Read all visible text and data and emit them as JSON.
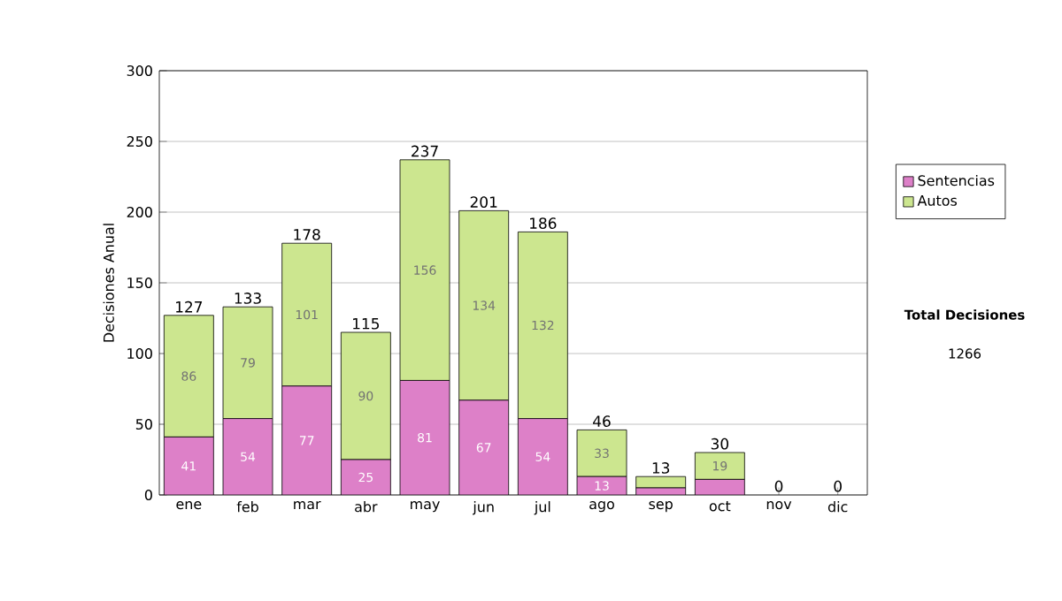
{
  "chart_data": {
    "type": "bar",
    "stacked": true,
    "ylabel": "Decisiones Anual",
    "categories": [
      "ene",
      "feb",
      "mar",
      "abr",
      "may",
      "jun",
      "jul",
      "ago",
      "sep",
      "oct",
      "nov",
      "dic"
    ],
    "series": [
      {
        "name": "Sentencias",
        "color": "#dd80c8",
        "values": [
          41,
          54,
          77,
          25,
          81,
          67,
          54,
          13,
          5,
          11,
          0,
          0
        ],
        "value_labels": [
          "41",
          "54",
          "77",
          "25",
          "81",
          "67",
          "54",
          "13",
          null,
          null,
          null,
          null
        ]
      },
      {
        "name": "Autos",
        "color": "#cce68f",
        "values": [
          86,
          79,
          101,
          90,
          156,
          134,
          132,
          33,
          8,
          19,
          0,
          0
        ],
        "value_labels": [
          "86",
          "79",
          "101",
          "90",
          "156",
          "134",
          "132",
          "33",
          null,
          "19",
          null,
          null
        ]
      }
    ],
    "totals": [
      "127",
      "133",
      "178",
      "115",
      "237",
      "201",
      "186",
      "46",
      "13",
      "30",
      "0",
      "0"
    ],
    "ylim": [
      0,
      300
    ],
    "yticks": [
      0,
      50,
      100,
      150,
      200,
      250,
      300
    ],
    "grid": "y",
    "legend": "right",
    "annotations": [
      "Total Decisiones",
      "1266"
    ]
  }
}
